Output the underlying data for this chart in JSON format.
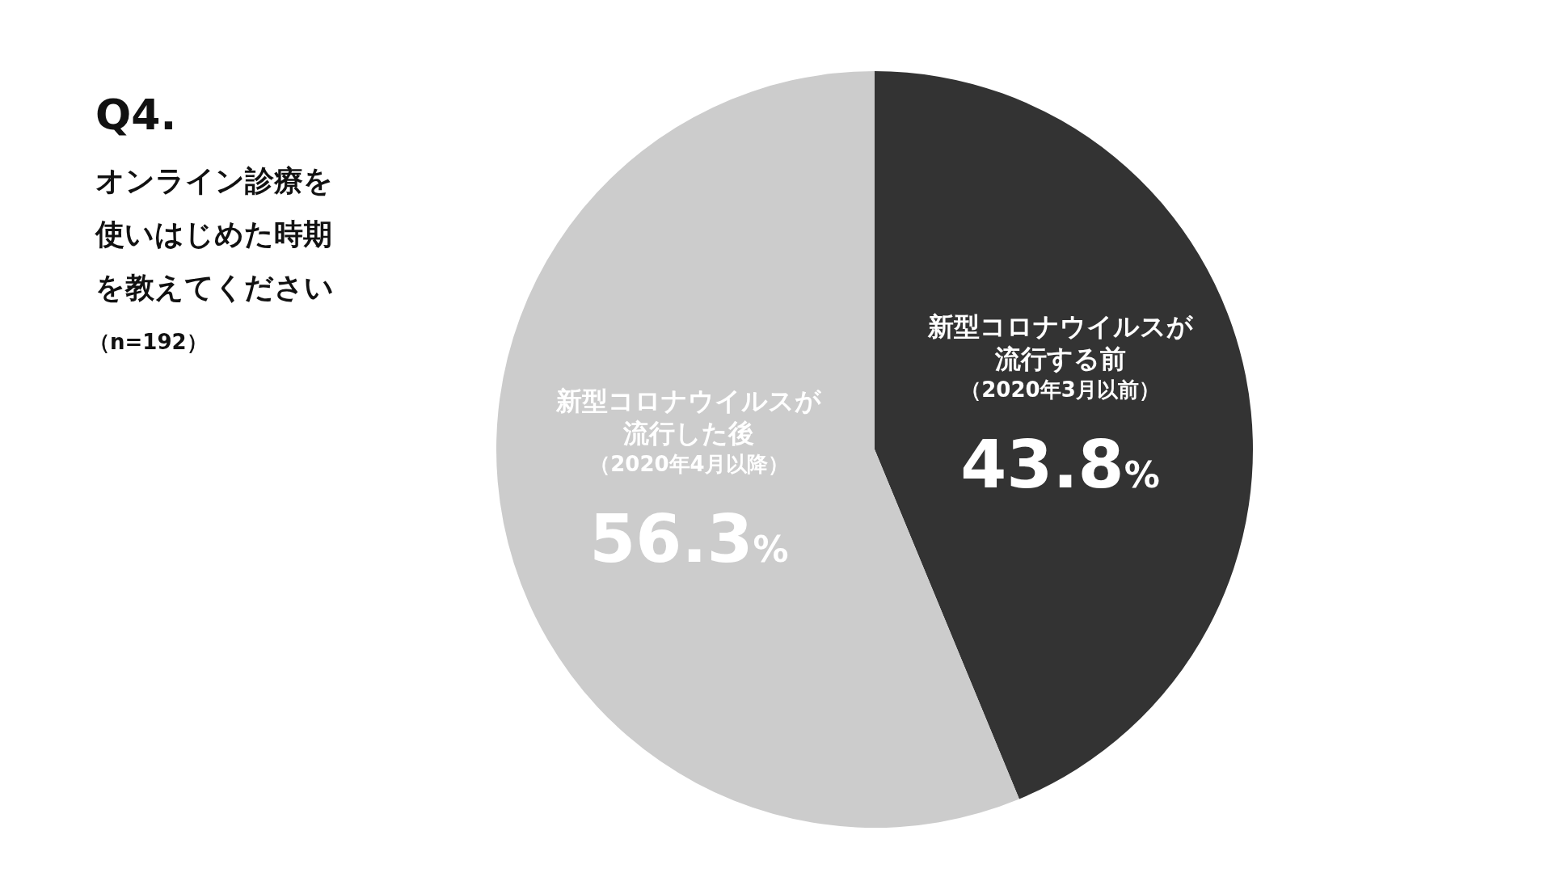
{
  "chart_data": {
    "type": "pie",
    "title": "Q4.",
    "subtitle": "オンライン診療を使いはじめた時期を教えてください",
    "annotations": [
      "（n=192）"
    ],
    "categories": [
      "新型コロナウイルスが流行する前（2020年3月以前）",
      "新型コロナウイルスが流行した後（2020年4月以降）"
    ],
    "values": [
      43.8,
      56.3
    ],
    "colors": [
      "#333333",
      "#cccccc"
    ],
    "value_labels": [
      "43.8%",
      "56.3%"
    ],
    "legend": false
  }
}
